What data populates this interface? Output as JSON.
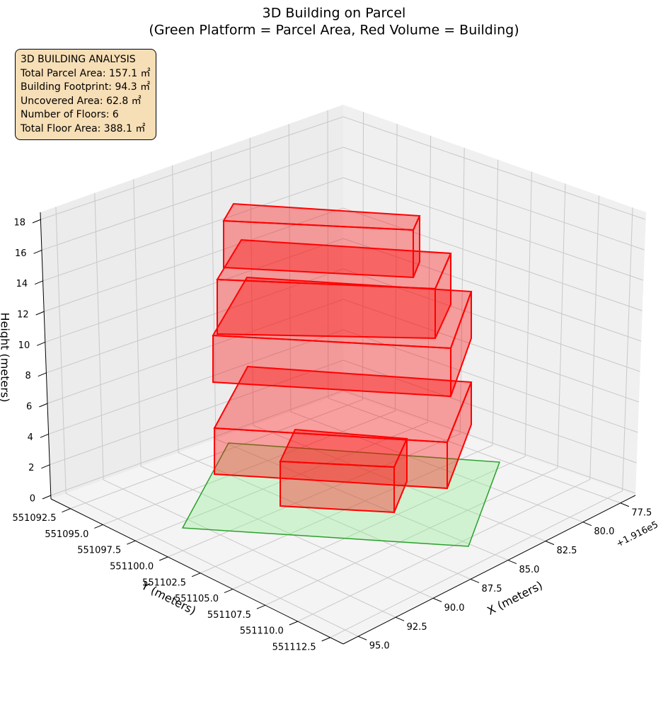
{
  "chart_data": {
    "type": "bar3d",
    "title": "3D Building on Parcel",
    "subtitle": "(Green Platform = Parcel Area, Red Volume = Building)",
    "x_label": "X (meters)",
    "y_label": "Y (meters)",
    "z_label": "Height (meters)",
    "x_offset_label": "+1.916e5",
    "xlim": [
      76.5,
      96.0
    ],
    "xticks": [
      {
        "value": 77.5,
        "label": "77.5"
      },
      {
        "value": 80.0,
        "label": "80.0"
      },
      {
        "value": 82.5,
        "label": "82.5"
      },
      {
        "value": 85.0,
        "label": "85.0"
      },
      {
        "value": 87.5,
        "label": "87.5"
      },
      {
        "value": 90.0,
        "label": "90.0"
      },
      {
        "value": 92.5,
        "label": "92.5"
      },
      {
        "value": 95.0,
        "label": "95.0"
      }
    ],
    "ylim": [
      551091.0,
      551113.5
    ],
    "yticks": [
      {
        "value": 551092.5,
        "label": "551092.5"
      },
      {
        "value": 551095.0,
        "label": "551095.0"
      },
      {
        "value": 551097.5,
        "label": "551097.5"
      },
      {
        "value": 551100.0,
        "label": "551100.0"
      },
      {
        "value": 551102.5,
        "label": "551102.5"
      },
      {
        "value": 551105.0,
        "label": "551105.0"
      },
      {
        "value": 551107.5,
        "label": "551107.5"
      },
      {
        "value": 551110.0,
        "label": "551110.0"
      },
      {
        "value": 551112.5,
        "label": "551112.5"
      }
    ],
    "zlim": [
      0,
      18
    ],
    "zticks": [
      0,
      2,
      4,
      6,
      8,
      10,
      12,
      14,
      16,
      18
    ],
    "grid": true,
    "parcel_color": "#2ca02c",
    "building_color": "#ff0000",
    "info_box": {
      "lines": [
        "3D BUILDING ANALYSIS",
        "Total Parcel Area: 157.1 ㎡",
        "Building Footprint: 94.3 ㎡",
        "Uncovered Area: 62.8 ㎡",
        "Number of Floors: 6",
        "Total Floor Area: 388.1 ㎡"
      ]
    }
  }
}
